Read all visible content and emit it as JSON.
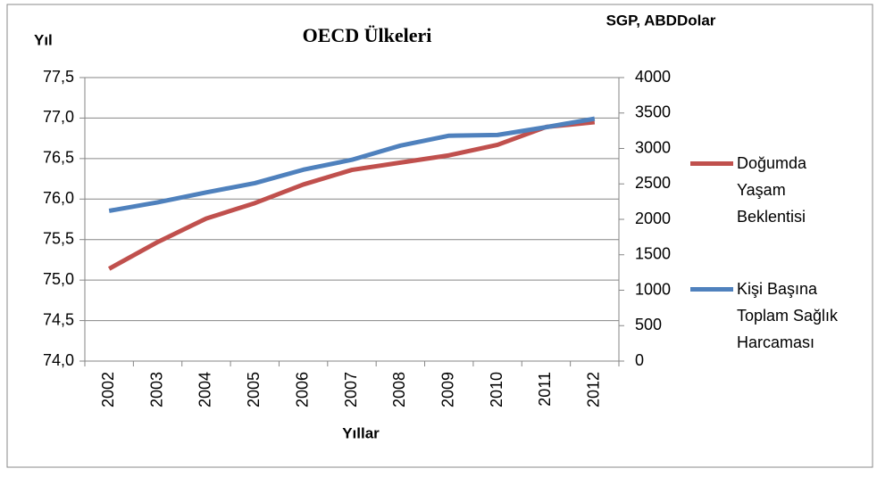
{
  "chart_data": {
    "type": "line",
    "title": "OECD Ülkeleri",
    "y_label": "Yıl",
    "y2_label": "SGP, ABDDolar",
    "x_label": "Yıllar",
    "categories": [
      "2002",
      "2003",
      "2004",
      "2005",
      "2006",
      "2007",
      "2008",
      "2009",
      "2010",
      "2011",
      "2012"
    ],
    "series": [
      {
        "name": "Doğumda Yaşam Beklentisi",
        "color": "#c0504d",
        "values": [
          75.14,
          75.47,
          75.76,
          75.95,
          76.18,
          76.36,
          76.45,
          76.54,
          76.67,
          76.89,
          76.95
        ]
      },
      {
        "name": "Kişi Başına Toplam Sağlık Harcaması",
        "color": "#4f81bd",
        "axis": "y2",
        "values": [
          2120,
          2240,
          2380,
          2510,
          2700,
          2840,
          3040,
          3180,
          3190,
          3300,
          3420
        ]
      }
    ],
    "ylim": [
      74.0,
      77.5
    ],
    "yticks": [
      {
        "value": 74.0,
        "label": "74,0"
      },
      {
        "value": 74.5,
        "label": "74,5"
      },
      {
        "value": 75.0,
        "label": "75,0"
      },
      {
        "value": 75.5,
        "label": "75,5"
      },
      {
        "value": 76.0,
        "label": "76,0"
      },
      {
        "value": 76.5,
        "label": "76,5"
      },
      {
        "value": 77.0,
        "label": "77,0"
      },
      {
        "value": 77.5,
        "label": "77,5"
      }
    ],
    "y2lim": [
      0,
      4000
    ],
    "y2ticks": [
      0,
      500,
      1000,
      1500,
      2000,
      2500,
      3000,
      3500,
      4000
    ],
    "grid": true,
    "legend": "right"
  }
}
